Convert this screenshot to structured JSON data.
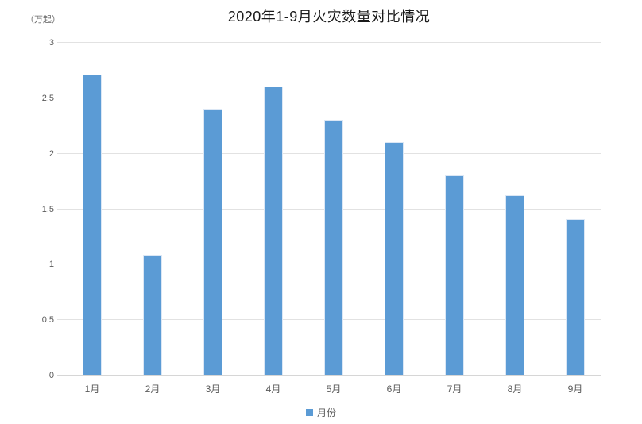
{
  "chart_data": {
    "type": "bar",
    "title": "2020年1-9月火灾数量对比情况",
    "unit_label": "（万起）",
    "categories": [
      "1月",
      "2月",
      "3月",
      "4月",
      "5月",
      "6月",
      "7月",
      "8月",
      "9月"
    ],
    "values": [
      2.71,
      1.08,
      2.4,
      2.6,
      2.3,
      2.1,
      1.8,
      1.62,
      1.4
    ],
    "series_name": "月份",
    "legend": {
      "label": "月份",
      "position": "bottom"
    },
    "xlabel": "",
    "ylabel": "",
    "ylim": [
      0,
      3
    ],
    "ytick_step": 0.5,
    "ytick_labels": [
      "0",
      "0.5",
      "1",
      "1.5",
      "2",
      "2.5",
      "3"
    ],
    "grid": true,
    "bar_color": "#5B9BD5"
  }
}
